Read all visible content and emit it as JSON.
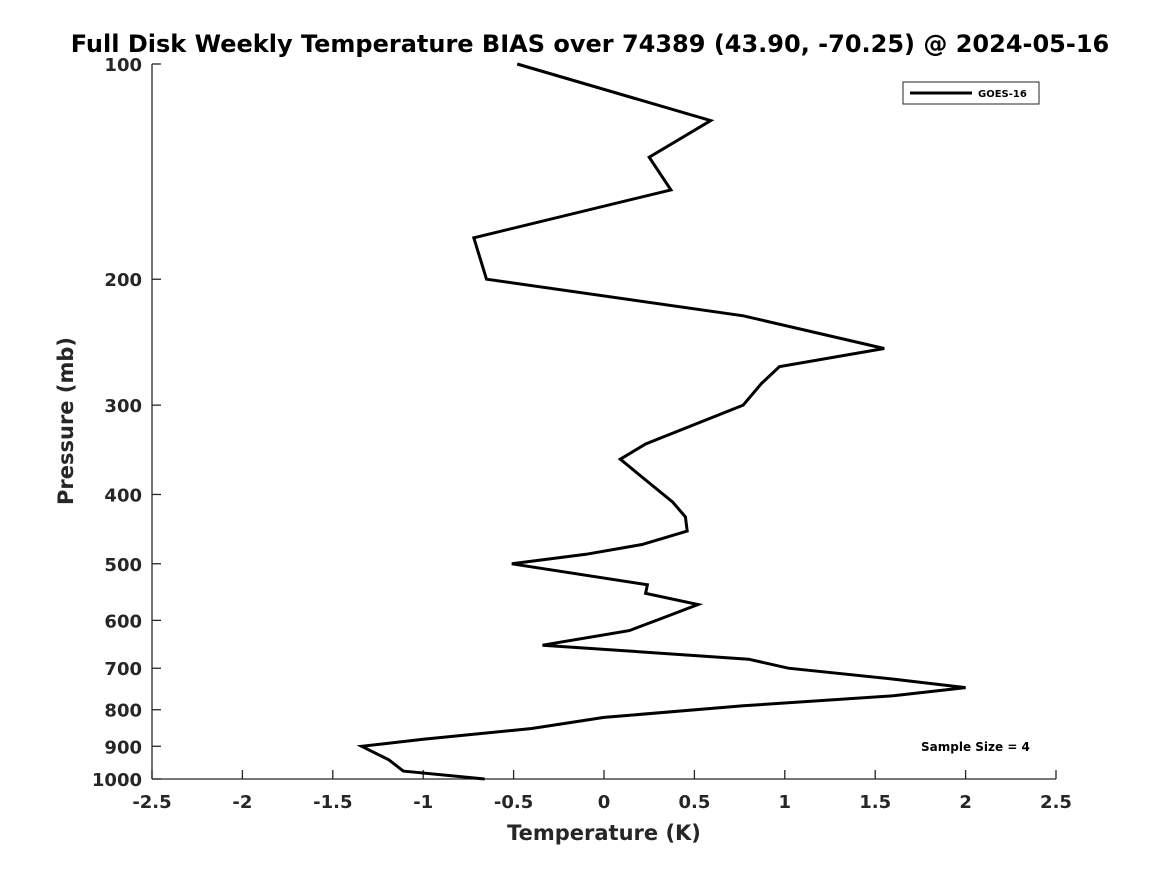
{
  "chart_data": {
    "type": "line",
    "title": "Full Disk Weekly Temperature BIAS over 74389 (43.90, -70.25) @ 2024-05-16",
    "xlabel": "Temperature (K)",
    "ylabel": "Pressure (mb)",
    "xlim": [
      -2.5,
      2.5
    ],
    "ylim": [
      100,
      1000
    ],
    "yscale": "log",
    "y_reversed": true,
    "grid": false,
    "legend_position": "top-right",
    "x_ticks": [
      -2.5,
      -2,
      -1.5,
      -1,
      -0.5,
      0,
      0.5,
      1,
      1.5,
      2,
      2.5
    ],
    "x_tick_labels": [
      "-2.5",
      "-2",
      "-1.5",
      "-1",
      "-0.5",
      "0",
      "0.5",
      "1",
      "1.5",
      "2",
      "2.5"
    ],
    "y_ticks": [
      100,
      200,
      300,
      400,
      500,
      600,
      700,
      800,
      900,
      1000
    ],
    "y_tick_labels": [
      "100",
      "200",
      "300",
      "400",
      "500",
      "600",
      "700",
      "800",
      "900",
      "1000"
    ],
    "series": [
      {
        "name": "GOES-16",
        "color": "#000000",
        "points": [
          [
            -0.48,
            100
          ],
          [
            0.59,
            120
          ],
          [
            0.25,
            135
          ],
          [
            0.37,
            150
          ],
          [
            -0.72,
            175
          ],
          [
            -0.65,
            200
          ],
          [
            0.77,
            225
          ],
          [
            1.55,
            250
          ],
          [
            0.97,
            265
          ],
          [
            0.87,
            280
          ],
          [
            0.77,
            300
          ],
          [
            0.23,
            340
          ],
          [
            0.09,
            357
          ],
          [
            0.22,
            380
          ],
          [
            0.38,
            410
          ],
          [
            0.45,
            430
          ],
          [
            0.46,
            450
          ],
          [
            0.21,
            470
          ],
          [
            -0.1,
            485
          ],
          [
            -0.51,
            500
          ],
          [
            0.24,
            535
          ],
          [
            0.23,
            550
          ],
          [
            0.52,
            570
          ],
          [
            0.29,
            600
          ],
          [
            0.14,
            620
          ],
          [
            -0.34,
            650
          ],
          [
            0.8,
            680
          ],
          [
            1.02,
            700
          ],
          [
            1.6,
            725
          ],
          [
            2.0,
            745
          ],
          [
            1.6,
            765
          ],
          [
            0.77,
            790
          ],
          [
            0.0,
            820
          ],
          [
            -0.4,
            850
          ],
          [
            -1.0,
            880
          ],
          [
            -1.34,
            900
          ],
          [
            -1.19,
            940
          ],
          [
            -1.11,
            975
          ],
          [
            -0.66,
            1000
          ]
        ]
      }
    ],
    "annotation": "Sample Size = 4"
  }
}
